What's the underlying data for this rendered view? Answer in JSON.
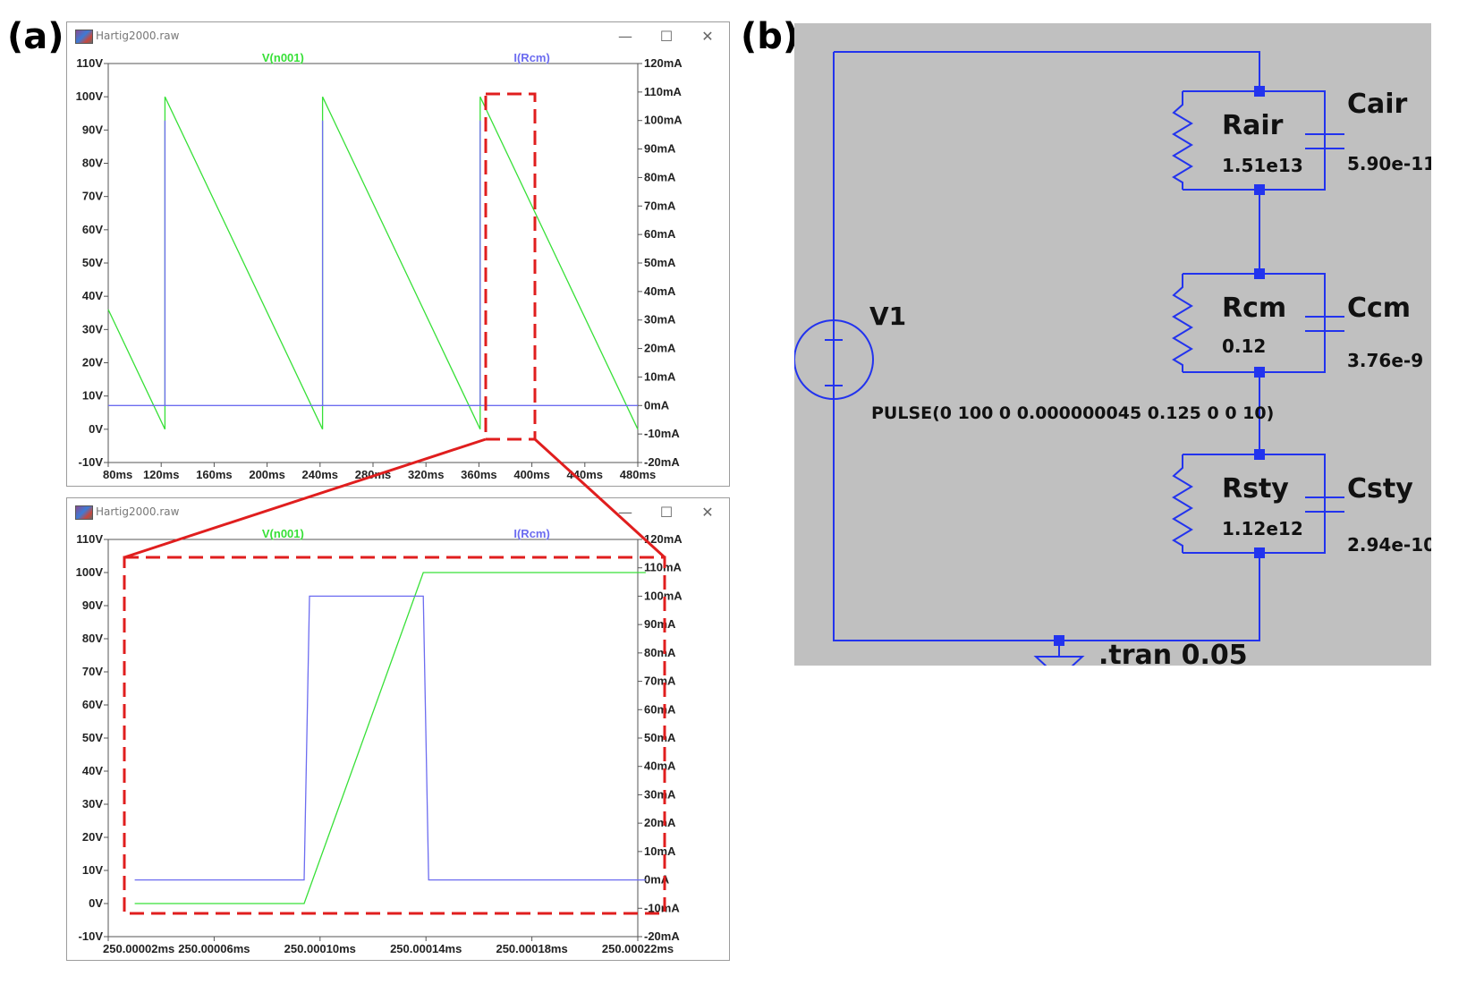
{
  "labels": {
    "a": "(a)",
    "b": "(b)"
  },
  "window_top": {
    "title": "Hartig2000.raw",
    "legend_v": "V(n001)",
    "legend_i": "I(Rcm)",
    "y_left_ticks": [
      "110V",
      "100V",
      "90V",
      "80V",
      "70V",
      "60V",
      "50V",
      "40V",
      "30V",
      "20V",
      "10V",
      "0V",
      "-10V"
    ],
    "y_right_ticks": [
      "120mA",
      "110mA",
      "100mA",
      "90mA",
      "80mA",
      "70mA",
      "60mA",
      "50mA",
      "40mA",
      "30mA",
      "20mA",
      "10mA",
      "0mA",
      "-10mA",
      "-20mA"
    ],
    "x_ticks": [
      "80ms",
      "120ms",
      "160ms",
      "200ms",
      "240ms",
      "280ms",
      "320ms",
      "360ms",
      "400ms",
      "440ms",
      "480ms"
    ]
  },
  "window_bottom": {
    "title": "Hartig2000.raw",
    "legend_v": "V(n001)",
    "legend_i": "I(Rcm)",
    "y_left_ticks": [
      "110V",
      "100V",
      "90V",
      "80V",
      "70V",
      "60V",
      "50V",
      "40V",
      "30V",
      "20V",
      "10V",
      "0V",
      "-10V"
    ],
    "y_right_ticks": [
      "120mA",
      "110mA",
      "100mA",
      "90mA",
      "80mA",
      "70mA",
      "60mA",
      "50mA",
      "40mA",
      "30mA",
      "20mA",
      "10mA",
      "0mA",
      "-10mA",
      "-20mA"
    ],
    "x_ticks": [
      "250.00002ms",
      "250.00006ms",
      "250.00010ms",
      "250.00014ms",
      "250.00018ms",
      "250.00022ms"
    ]
  },
  "chart_data": [
    {
      "type": "line",
      "xlabel": "",
      "ylabel": "",
      "xlim": [
        80,
        500
      ],
      "ylim_left": [
        -10,
        110
      ],
      "ylim_right": [
        -20,
        120
      ],
      "series": [
        {
          "name": "V(n001)",
          "axis": "left",
          "x": [
            80,
            125,
            125,
            250,
            250,
            375,
            375,
            500
          ],
          "y": [
            36,
            0,
            100,
            0,
            100,
            0,
            100,
            0
          ]
        },
        {
          "name": "I(Rcm)",
          "axis": "right",
          "x": [
            80,
            125,
            125,
            125,
            250,
            250,
            250,
            375,
            375,
            375,
            500
          ],
          "y": [
            0,
            0,
            100,
            0,
            0,
            100,
            0,
            0,
            100,
            0,
            0
          ]
        }
      ]
    },
    {
      "type": "line",
      "xlabel": "",
      "ylabel": "",
      "xlim": [
        250.00002,
        250.00022
      ],
      "ylim_left": [
        -10,
        110
      ],
      "ylim_right": [
        -20,
        120
      ],
      "series": [
        {
          "name": "V(n001)",
          "axis": "left",
          "x": [
            250.00003,
            250.000094,
            250.000139,
            250.000223
          ],
          "y": [
            0,
            0,
            100,
            100
          ]
        },
        {
          "name": "I(Rcm)",
          "axis": "right",
          "x": [
            250.00003,
            250.000094,
            250.000096,
            250.000139,
            250.000141,
            250.000223
          ],
          "y": [
            0,
            0,
            100,
            100,
            0,
            0
          ]
        }
      ]
    }
  ],
  "colors": {
    "voltage": "#38e038",
    "current": "#6c6cf0",
    "highlight": "#e01e1e",
    "wire": "#2233ee",
    "schematic_bg": "#c0c0c0"
  },
  "schematic": {
    "source": {
      "name": "V1",
      "spec": "PULSE(0 100 0 0.000000045 0.125 0 0 10)"
    },
    "stages": [
      {
        "r_name": "Rair",
        "r_value": "1.51e13",
        "c_name": "Cair",
        "c_value": "5.90e-11"
      },
      {
        "r_name": "Rcm",
        "r_value": "0.12",
        "c_name": "Ccm",
        "c_value": "3.76e-9"
      },
      {
        "r_name": "Rsty",
        "r_value": "1.12e12",
        "c_name": "Csty",
        "c_value": "2.94e-10"
      }
    ],
    "directive": ".tran 0.05"
  }
}
